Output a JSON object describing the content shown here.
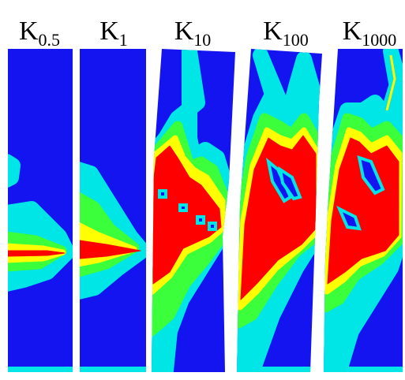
{
  "panels": [
    {
      "label": "K",
      "subscript": "0.5"
    },
    {
      "label": "K",
      "subscript": "1"
    },
    {
      "label": "K",
      "subscript": "10"
    },
    {
      "label": "K",
      "subscript": "100"
    },
    {
      "label": "K",
      "subscript": "1000"
    }
  ]
}
